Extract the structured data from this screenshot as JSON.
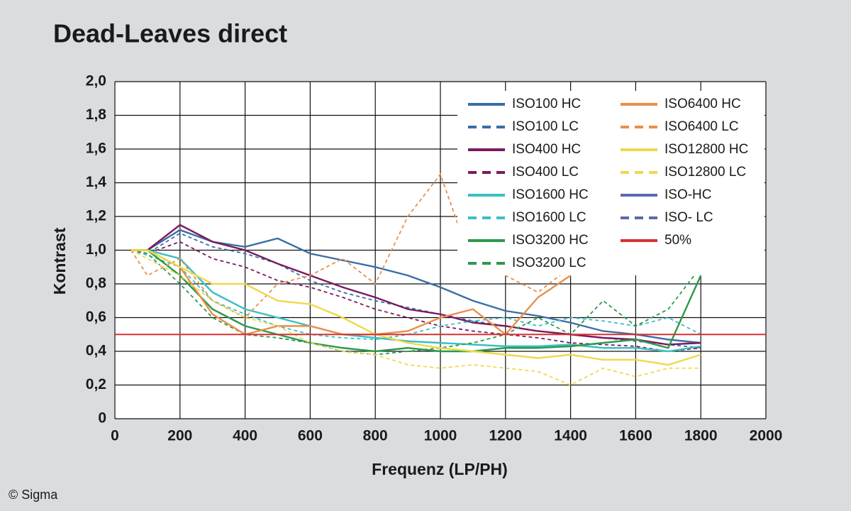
{
  "chart_data": {
    "type": "line",
    "title": "Dead-Leaves direct",
    "x_label": "Frequenz (LP/PH)",
    "y_label": "Kontrast",
    "credit": "© Sigma",
    "xlim": [
      0,
      2000
    ],
    "xticks": [
      0,
      200,
      400,
      600,
      800,
      1000,
      1200,
      1400,
      1600,
      1800,
      2000
    ],
    "ylim": [
      0,
      2.0
    ],
    "yticks": [
      0,
      {
        "value": 0.2,
        "label": "0,2"
      },
      {
        "value": 0.4,
        "label": "0,4"
      },
      {
        "value": 0.6,
        "label": "0,6"
      },
      {
        "value": 0.8,
        "label": "0,8"
      },
      {
        "value": 1.0,
        "label": "1,0"
      },
      {
        "value": 1.2,
        "label": "1,2"
      },
      {
        "value": 1.4,
        "label": "1,4"
      },
      {
        "value": 1.6,
        "label": "1,6"
      },
      {
        "value": 1.8,
        "label": "1,8"
      },
      {
        "value": 2.0,
        "label": "2,0"
      }
    ],
    "grid": true,
    "legend": "top-right",
    "x": [
      50,
      100,
      200,
      300,
      400,
      500,
      600,
      700,
      800,
      900,
      1000,
      1100,
      1200,
      1300,
      1400,
      1500,
      1600,
      1700,
      1800
    ],
    "series": [
      {
        "name": "ISO100 HC",
        "color": "#3a6ea5",
        "dashed": false,
        "values": [
          1.0,
          1.0,
          1.12,
          1.05,
          1.02,
          1.07,
          0.98,
          0.94,
          0.9,
          0.85,
          0.78,
          0.7,
          0.64,
          0.61,
          0.57,
          0.52,
          0.5,
          0.47,
          0.45
        ]
      },
      {
        "name": "ISO100 LC",
        "color": "#3a6ea5",
        "dashed": true,
        "values": [
          1.0,
          0.98,
          1.1,
          1.02,
          0.98,
          0.92,
          0.82,
          0.75,
          0.7,
          0.66,
          0.62,
          0.58,
          0.55,
          0.52,
          0.5,
          0.48,
          0.46,
          0.44,
          0.42
        ]
      },
      {
        "name": "ISO400 HC",
        "color": "#7b1a5e",
        "dashed": false,
        "values": [
          1.0,
          1.0,
          1.15,
          1.05,
          1.0,
          0.92,
          0.85,
          0.78,
          0.72,
          0.65,
          0.62,
          0.57,
          0.55,
          0.52,
          0.5,
          0.48,
          0.47,
          0.44,
          0.45
        ]
      },
      {
        "name": "ISO400 LC",
        "color": "#7b1a5e",
        "dashed": true,
        "values": [
          1.0,
          0.98,
          1.05,
          0.95,
          0.9,
          0.82,
          0.78,
          0.72,
          0.65,
          0.6,
          0.55,
          0.52,
          0.5,
          0.48,
          0.45,
          0.44,
          0.43,
          0.4,
          0.42
        ]
      },
      {
        "name": "ISO1600 HC",
        "color": "#3bbfc4",
        "dashed": false,
        "values": [
          1.0,
          1.0,
          0.95,
          0.75,
          0.65,
          0.6,
          0.55,
          0.5,
          0.48,
          0.46,
          0.45,
          0.44,
          0.43,
          0.43,
          0.44,
          0.42,
          0.42,
          0.4,
          0.43
        ]
      },
      {
        "name": "ISO1600 LC",
        "color": "#3bbfc4",
        "dashed": true,
        "values": [
          1.0,
          0.97,
          0.9,
          0.7,
          0.62,
          0.55,
          0.5,
          0.48,
          0.47,
          0.5,
          0.55,
          0.58,
          0.6,
          0.55,
          0.6,
          0.58,
          0.55,
          0.6,
          0.5
        ]
      },
      {
        "name": "ISO3200 HC",
        "color": "#2a9a4a",
        "dashed": false,
        "values": [
          1.0,
          1.0,
          0.85,
          0.65,
          0.55,
          0.5,
          0.45,
          0.42,
          0.4,
          0.42,
          0.4,
          0.4,
          0.42,
          0.42,
          0.43,
          0.45,
          0.47,
          0.42,
          0.85
        ]
      },
      {
        "name": "ISO3200 LC",
        "color": "#2a9a4a",
        "dashed": true,
        "values": [
          1.0,
          0.98,
          0.8,
          0.6,
          0.5,
          0.48,
          0.45,
          0.4,
          0.38,
          0.4,
          0.42,
          0.45,
          0.5,
          0.6,
          0.5,
          0.7,
          0.55,
          0.65,
          0.9
        ]
      },
      {
        "name": "ISO6400 HC",
        "color": "#e8904a",
        "dashed": false,
        "values": [
          1.0,
          1.0,
          0.9,
          0.62,
          0.5,
          0.55,
          0.55,
          0.5,
          0.5,
          0.52,
          0.6,
          0.65,
          0.5,
          0.72,
          0.85,
          null,
          null,
          null,
          null
        ]
      },
      {
        "name": "ISO6400 LC",
        "color": "#e8904a",
        "dashed": true,
        "values": [
          1.0,
          0.85,
          0.95,
          0.7,
          0.6,
          0.8,
          0.85,
          0.95,
          0.8,
          1.2,
          1.45,
          0.9,
          0.85,
          0.75,
          0.9,
          null,
          null,
          null,
          null
        ]
      },
      {
        "name": "ISO12800 HC",
        "color": "#f0d84a",
        "dashed": false,
        "values": [
          1.0,
          1.0,
          0.9,
          0.8,
          0.8,
          0.7,
          0.68,
          0.6,
          0.5,
          0.45,
          0.42,
          0.4,
          0.38,
          0.36,
          0.38,
          0.35,
          0.35,
          0.32,
          0.38
        ]
      },
      {
        "name": "ISO12800 LC",
        "color": "#f0d84a",
        "dashed": true,
        "values": [
          1.0,
          0.95,
          0.85,
          0.7,
          0.6,
          0.55,
          0.45,
          0.4,
          0.38,
          0.32,
          0.3,
          0.32,
          0.3,
          0.28,
          0.2,
          0.3,
          0.25,
          0.3,
          0.3
        ]
      },
      {
        "name": "ISO-HC",
        "color": "#5a6aae",
        "dashed": false,
        "values": [
          null,
          null,
          null,
          null,
          null,
          null,
          null,
          null,
          null,
          null,
          null,
          null,
          null,
          null,
          null,
          null,
          null,
          null,
          null
        ]
      },
      {
        "name": "ISO- LC",
        "color": "#5a6aae",
        "dashed": true,
        "values": [
          null,
          null,
          null,
          null,
          null,
          null,
          null,
          null,
          null,
          null,
          null,
          null,
          null,
          null,
          null,
          null,
          null,
          null,
          null
        ]
      }
    ],
    "reference_line": {
      "name": "50%",
      "value": 0.5,
      "color": "#d83030"
    }
  }
}
